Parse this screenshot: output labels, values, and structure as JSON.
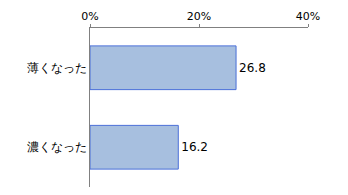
{
  "chart_data": {
    "type": "bar",
    "orientation": "horizontal",
    "categories": [
      "薄くなった",
      "濃くなった"
    ],
    "values": [
      26.8,
      16.2
    ],
    "color": "#a7bfdf",
    "xlim": [
      0,
      40
    ],
    "xticks": [
      {
        "value": 0,
        "label": "0%"
      },
      {
        "value": 20,
        "label": "20%"
      },
      {
        "value": 40,
        "label": "40%"
      }
    ],
    "grid": false,
    "data_labels": true
  }
}
